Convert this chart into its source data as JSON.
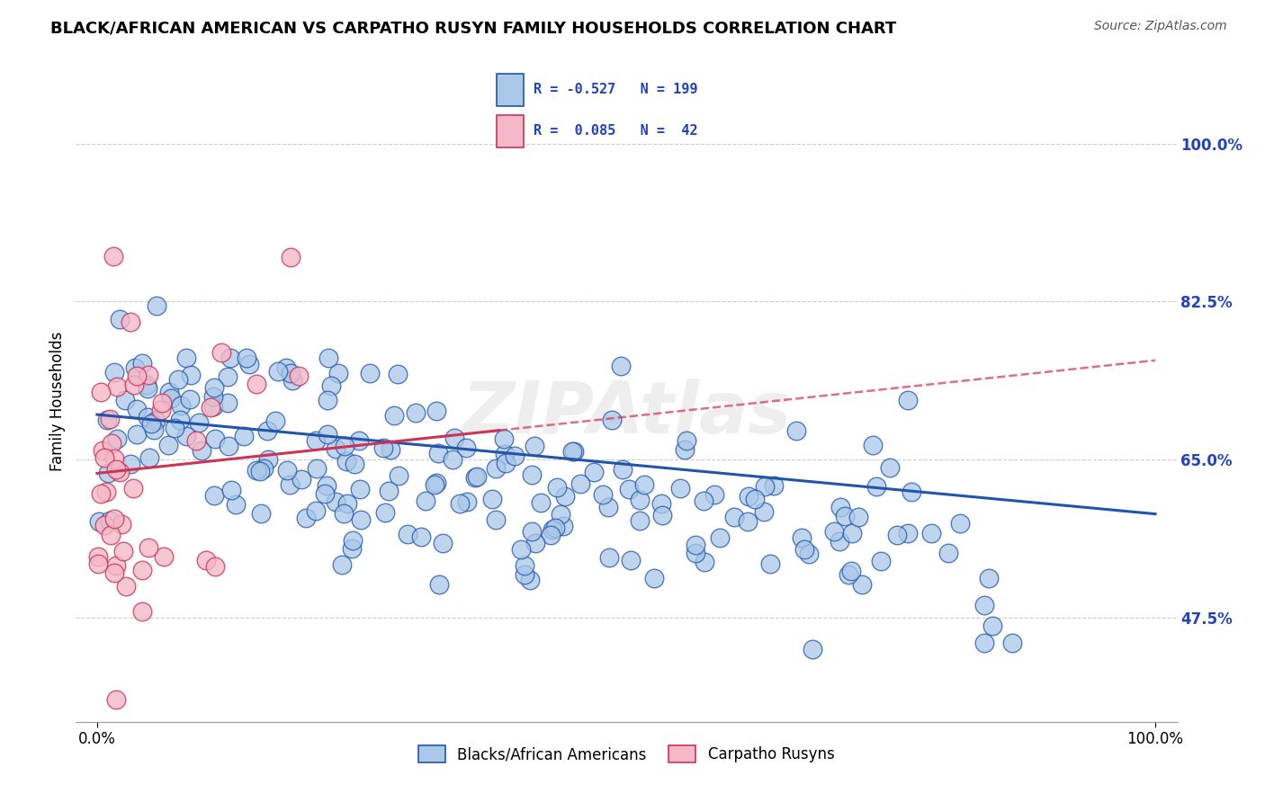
{
  "title": "BLACK/AFRICAN AMERICAN VS CARPATHO RUSYN FAMILY HOUSEHOLDS CORRELATION CHART",
  "source": "Source: ZipAtlas.com",
  "ylabel": "Family Households",
  "yticks": [
    "47.5%",
    "65.0%",
    "82.5%",
    "100.0%"
  ],
  "ytick_vals": [
    0.475,
    0.65,
    0.825,
    1.0
  ],
  "xlim": [
    0.0,
    1.0
  ],
  "ylim": [
    0.36,
    1.07
  ],
  "blue_R": -0.527,
  "blue_N": 199,
  "pink_R": 0.085,
  "pink_N": 42,
  "blue_scatter_color": "#aac8e8",
  "pink_scatter_color": "#f5b8c8",
  "blue_line_color": "#2255aa",
  "pink_line_color": "#cc3355",
  "background_color": "#ffffff",
  "grid_color": "#cccccc",
  "watermark": "ZIPAtlas",
  "legend_R_color": "#2244bb",
  "legend_label_blue": "Blacks/African Americans",
  "legend_label_pink": "Carpatho Rusyns",
  "title_fontsize": 13,
  "source_fontsize": 10,
  "blue_line_start_y": 0.7,
  "blue_line_end_y": 0.59,
  "pink_line_start_y": 0.635,
  "pink_line_end_y": 0.76
}
